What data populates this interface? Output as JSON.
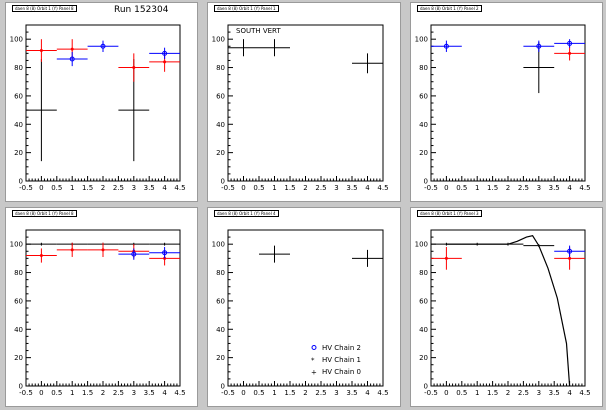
{
  "run_label": "Run 152304",
  "panel_titles": [
    "daen 8 (8) Orbit 1 (Y) Panel 8",
    "daen 8 (8) Orbit 1 (Y) Panel 1",
    "daen 8 (8) Orbit 1 (Y) Panel 2",
    "daen 8 (8) Orbit 1 (Y) Panel 8",
    "daen 8 (8) Orbit 1 (Y) Panel 4",
    "daen 8 (8) Orbit 1 (Y) Panel 3"
  ],
  "legend": [
    {
      "label": "HV Chain 2",
      "color": "#0000ff",
      "marker": "circle"
    },
    {
      "label": "HV Chain 1",
      "color": "#ff0000",
      "marker": "star"
    },
    {
      "label": "HV Chain 0",
      "color": "#000000",
      "marker": "plus"
    }
  ],
  "chart_data": [
    {
      "type": "scatter",
      "xlim": [
        -0.5,
        4.5
      ],
      "ylim": [
        0,
        110
      ],
      "xticks": [
        "-0.5",
        "0",
        "0.5",
        "1",
        "1.5",
        "2",
        "2.5",
        "3",
        "3.5",
        "4",
        "4.5"
      ],
      "yticks": [
        "0",
        "20",
        "40",
        "60",
        "80",
        "100"
      ],
      "series": [
        {
          "color": "#000000",
          "points": [
            [
              0,
              50,
              36
            ],
            [
              3,
              50,
              36
            ]
          ]
        },
        {
          "color": "#ff0000",
          "points": [
            [
              0,
              92,
              8
            ],
            [
              1,
              93,
              7
            ],
            [
              3,
              80,
              10
            ],
            [
              4,
              84,
              7
            ]
          ]
        },
        {
          "color": "#0000ff",
          "points": [
            [
              1,
              86,
              5
            ],
            [
              2,
              95,
              4
            ],
            [
              4,
              90,
              4
            ]
          ]
        }
      ]
    },
    {
      "type": "scatter",
      "title": "SOUTH VERT",
      "xlim": [
        -0.5,
        4.5
      ],
      "ylim": [
        0,
        110
      ],
      "xticks": [
        "-0.5",
        "0",
        "0.5",
        "1",
        "1.5",
        "2",
        "2.5",
        "3",
        "3.5",
        "4",
        "4.5"
      ],
      "yticks": [
        "0",
        "20",
        "40",
        "60",
        "80",
        "100"
      ],
      "series": [
        {
          "color": "#000000",
          "points": [
            [
              0,
              94,
              6
            ],
            [
              1,
              94,
              6
            ],
            [
              4,
              83,
              7
            ]
          ]
        }
      ]
    },
    {
      "type": "scatter",
      "xlim": [
        -0.5,
        4.5
      ],
      "ylim": [
        0,
        110
      ],
      "xticks": [
        "-0.5",
        "0",
        "0.5",
        "1",
        "1.5",
        "2",
        "2.5",
        "3",
        "3.5",
        "4",
        "4.5"
      ],
      "yticks": [
        "0",
        "20",
        "40",
        "60",
        "80",
        "100"
      ],
      "series": [
        {
          "color": "#000000",
          "points": [
            [
              3,
              80,
              18
            ]
          ]
        },
        {
          "color": "#ff0000",
          "points": [
            [
              4,
              90,
              5
            ]
          ]
        },
        {
          "color": "#0000ff",
          "points": [
            [
              0,
              95,
              4
            ],
            [
              3,
              95,
              4
            ],
            [
              4,
              97,
              3
            ]
          ]
        }
      ]
    },
    {
      "type": "scatter",
      "xlim": [
        -0.5,
        4.5
      ],
      "ylim": [
        0,
        110
      ],
      "xticks": [
        "-0.5",
        "0",
        "0.5",
        "1",
        "1.5",
        "2",
        "2.5",
        "3",
        "3.5",
        "4",
        "4.5"
      ],
      "yticks": [
        "0",
        "20",
        "40",
        "60",
        "80",
        "100"
      ],
      "series": [
        {
          "color": "#000000",
          "points": [
            [
              0,
              100,
              1
            ],
            [
              1,
              100,
              1
            ],
            [
              2,
              100,
              1
            ],
            [
              3,
              100,
              1
            ],
            [
              4,
              100,
              1
            ]
          ]
        },
        {
          "color": "#ff0000",
          "points": [
            [
              0,
              92,
              5
            ],
            [
              1,
              96,
              5
            ],
            [
              2,
              96,
              5
            ],
            [
              3,
              95,
              5
            ],
            [
              4,
              90,
              5
            ]
          ]
        },
        {
          "color": "#0000ff",
          "points": [
            [
              3,
              93,
              4
            ],
            [
              4,
              94,
              4
            ]
          ]
        }
      ]
    },
    {
      "type": "scatter",
      "xlim": [
        -0.5,
        4.5
      ],
      "ylim": [
        0,
        110
      ],
      "xticks": [
        "-0.5",
        "0",
        "0.5",
        "1",
        "1.5",
        "2",
        "2.5",
        "3",
        "3.5",
        "4",
        "4.5"
      ],
      "yticks": [
        "0",
        "20",
        "40",
        "60",
        "80",
        "100"
      ],
      "series": [
        {
          "color": "#000000",
          "points": [
            [
              1,
              93,
              6
            ],
            [
              4,
              90,
              6
            ]
          ]
        }
      ]
    },
    {
      "type": "line",
      "xlim": [
        -0.5,
        4.5
      ],
      "ylim": [
        0,
        110
      ],
      "xticks": [
        "-0.5",
        "0",
        "0.5",
        "1",
        "1.5",
        "2",
        "2.5",
        "3",
        "3.5",
        "4",
        "4.5"
      ],
      "yticks": [
        "0",
        "20",
        "40",
        "60",
        "80",
        "100"
      ],
      "series": [
        {
          "color": "#000000",
          "points": [
            [
              0,
              100,
              1
            ],
            [
              1,
              100,
              1
            ],
            [
              2,
              100,
              1
            ],
            [
              3,
              99,
              1
            ]
          ]
        },
        {
          "color": "#ff0000",
          "points": [
            [
              0,
              90,
              8
            ],
            [
              4,
              90,
              8
            ]
          ]
        },
        {
          "color": "#0000ff",
          "points": [
            [
              4,
              95,
              4
            ]
          ]
        }
      ],
      "curve": [
        [
          0,
          100
        ],
        [
          1,
          100
        ],
        [
          2,
          100
        ],
        [
          2.3,
          102
        ],
        [
          2.6,
          105
        ],
        [
          2.8,
          106
        ],
        [
          3.0,
          99
        ],
        [
          3.3,
          83
        ],
        [
          3.6,
          62
        ],
        [
          3.9,
          30
        ],
        [
          4.0,
          0
        ]
      ]
    }
  ]
}
